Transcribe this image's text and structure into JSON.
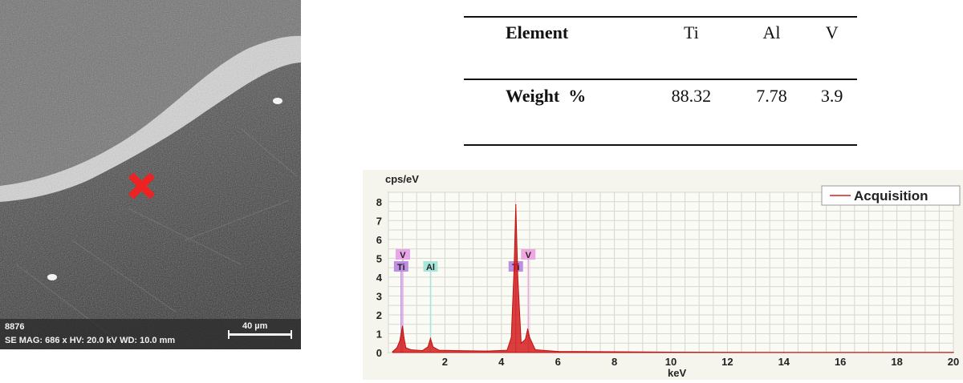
{
  "sem": {
    "image_id": "8876",
    "params": "SE  MAG: 686 x  HV: 20.0 kV  WD: 10.0 mm",
    "scale_label": "40 µm",
    "marker": "red-x-marker"
  },
  "table": {
    "header_label": "Element",
    "elements": [
      "Ti",
      "Al",
      "V"
    ],
    "row_label": "Weight  %",
    "weights": [
      "88.32",
      "7.78",
      "3.9"
    ]
  },
  "chart_data": {
    "type": "line",
    "title": "",
    "xlabel": "keV",
    "ylabel": "cps/eV",
    "xlim": [
      0,
      20
    ],
    "ylim": [
      0,
      8.5
    ],
    "xticks": [
      2,
      4,
      6,
      8,
      10,
      12,
      14,
      16,
      18,
      20
    ],
    "yticks": [
      0,
      1,
      2,
      3,
      4,
      5,
      6,
      7,
      8
    ],
    "legend": "Acquisition",
    "legend_position": "top-right",
    "series": [
      {
        "name": "Acquisition",
        "x": [
          0.15,
          0.3,
          0.4,
          0.45,
          0.5,
          0.55,
          0.62,
          0.8,
          1.2,
          1.4,
          1.49,
          1.58,
          1.8,
          2.5,
          3.5,
          4.2,
          4.35,
          4.45,
          4.51,
          4.58,
          4.7,
          4.85,
          4.93,
          5.0,
          5.2,
          6,
          8,
          10,
          14,
          20
        ],
        "y": [
          0.05,
          0.25,
          0.6,
          1.0,
          1.4,
          0.8,
          0.25,
          0.15,
          0.1,
          0.3,
          0.75,
          0.3,
          0.12,
          0.1,
          0.08,
          0.12,
          0.8,
          4.5,
          7.85,
          4.0,
          0.5,
          0.7,
          1.25,
          0.8,
          0.15,
          0.06,
          0.04,
          0.02,
          0.01,
          0.01
        ]
      }
    ],
    "peak_labels": [
      {
        "text": "V",
        "x": 0.51,
        "color": "#e8a6e8"
      },
      {
        "text": "Ti",
        "x": 0.45,
        "color": "#c08ee0"
      },
      {
        "text": "Al",
        "x": 1.49,
        "color": "#a8e6da"
      },
      {
        "text": "Ti",
        "x": 4.51,
        "color": "#c08ee0"
      },
      {
        "text": "V",
        "x": 4.95,
        "color": "#f0a6e0"
      }
    ]
  }
}
